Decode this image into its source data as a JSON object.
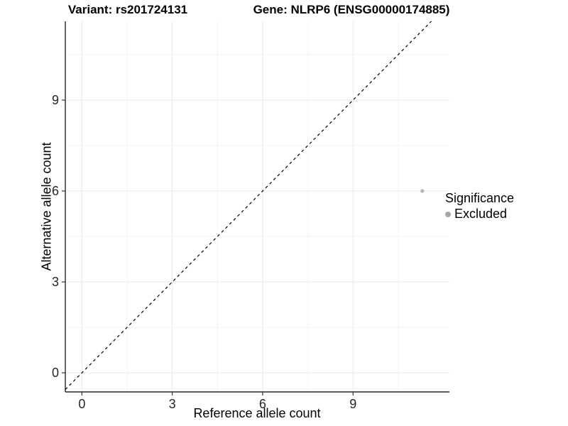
{
  "chart_data": {
    "type": "scatter",
    "title_left": "Variant: rs201724131",
    "title_right": "Gene: NLRP6 (ENSG00000174885)",
    "xlabel": "Reference allele count",
    "ylabel": "Alternative allele count",
    "xlim": [
      -0.55,
      12.2
    ],
    "ylim": [
      -0.63,
      11.6
    ],
    "xticks": [
      0,
      3,
      6,
      9
    ],
    "yticks": [
      0,
      3,
      6,
      9
    ],
    "minor_xticks": [
      1.5,
      4.5,
      7.5,
      10.5
    ],
    "minor_yticks": [
      1.5,
      4.5,
      7.5,
      10.5
    ],
    "grid": true,
    "series": [
      {
        "name": "Excluded",
        "color": "#b4b4b4",
        "points": [
          {
            "x": 11.3,
            "y": 6.0
          }
        ]
      }
    ],
    "reference_line": {
      "type": "identity",
      "slope": 1,
      "intercept": 0,
      "style": "dashed",
      "color": "#000000"
    },
    "legend": {
      "title": "Significance",
      "position": "right",
      "entries": [
        {
          "label": "Excluded",
          "color": "#a8a8a8",
          "marker": "circle"
        }
      ]
    }
  },
  "colors": {
    "background": "#ffffff",
    "grid_major": "#e9e9e9",
    "grid_minor": "#f4f4f4",
    "axis_line": "#000000",
    "tick_mark": "#333333",
    "tick_label": "#262626",
    "title_text": "#000000",
    "point": "#b4b4b4"
  }
}
